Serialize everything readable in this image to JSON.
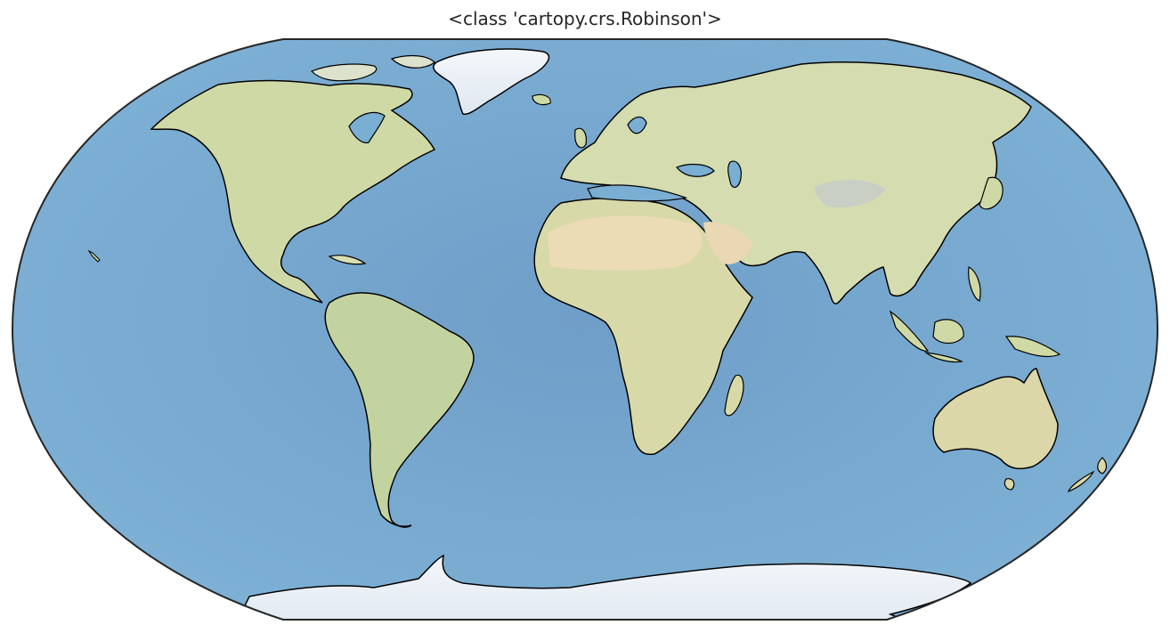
{
  "title": "<class 'cartopy.crs.Robinson'>",
  "map": {
    "projection": "Robinson",
    "background": "stock image (shaded relief)",
    "features": [
      "coastlines"
    ],
    "colors": {
      "ocean": "#7aaed3",
      "ocean_deep": "#5f95c2",
      "land": "#d9dfb0",
      "land_green": "#a9c398",
      "desert": "#ead7b0",
      "ice": "#eef3f8",
      "coastline": "#000000",
      "frame": "#262626"
    }
  }
}
